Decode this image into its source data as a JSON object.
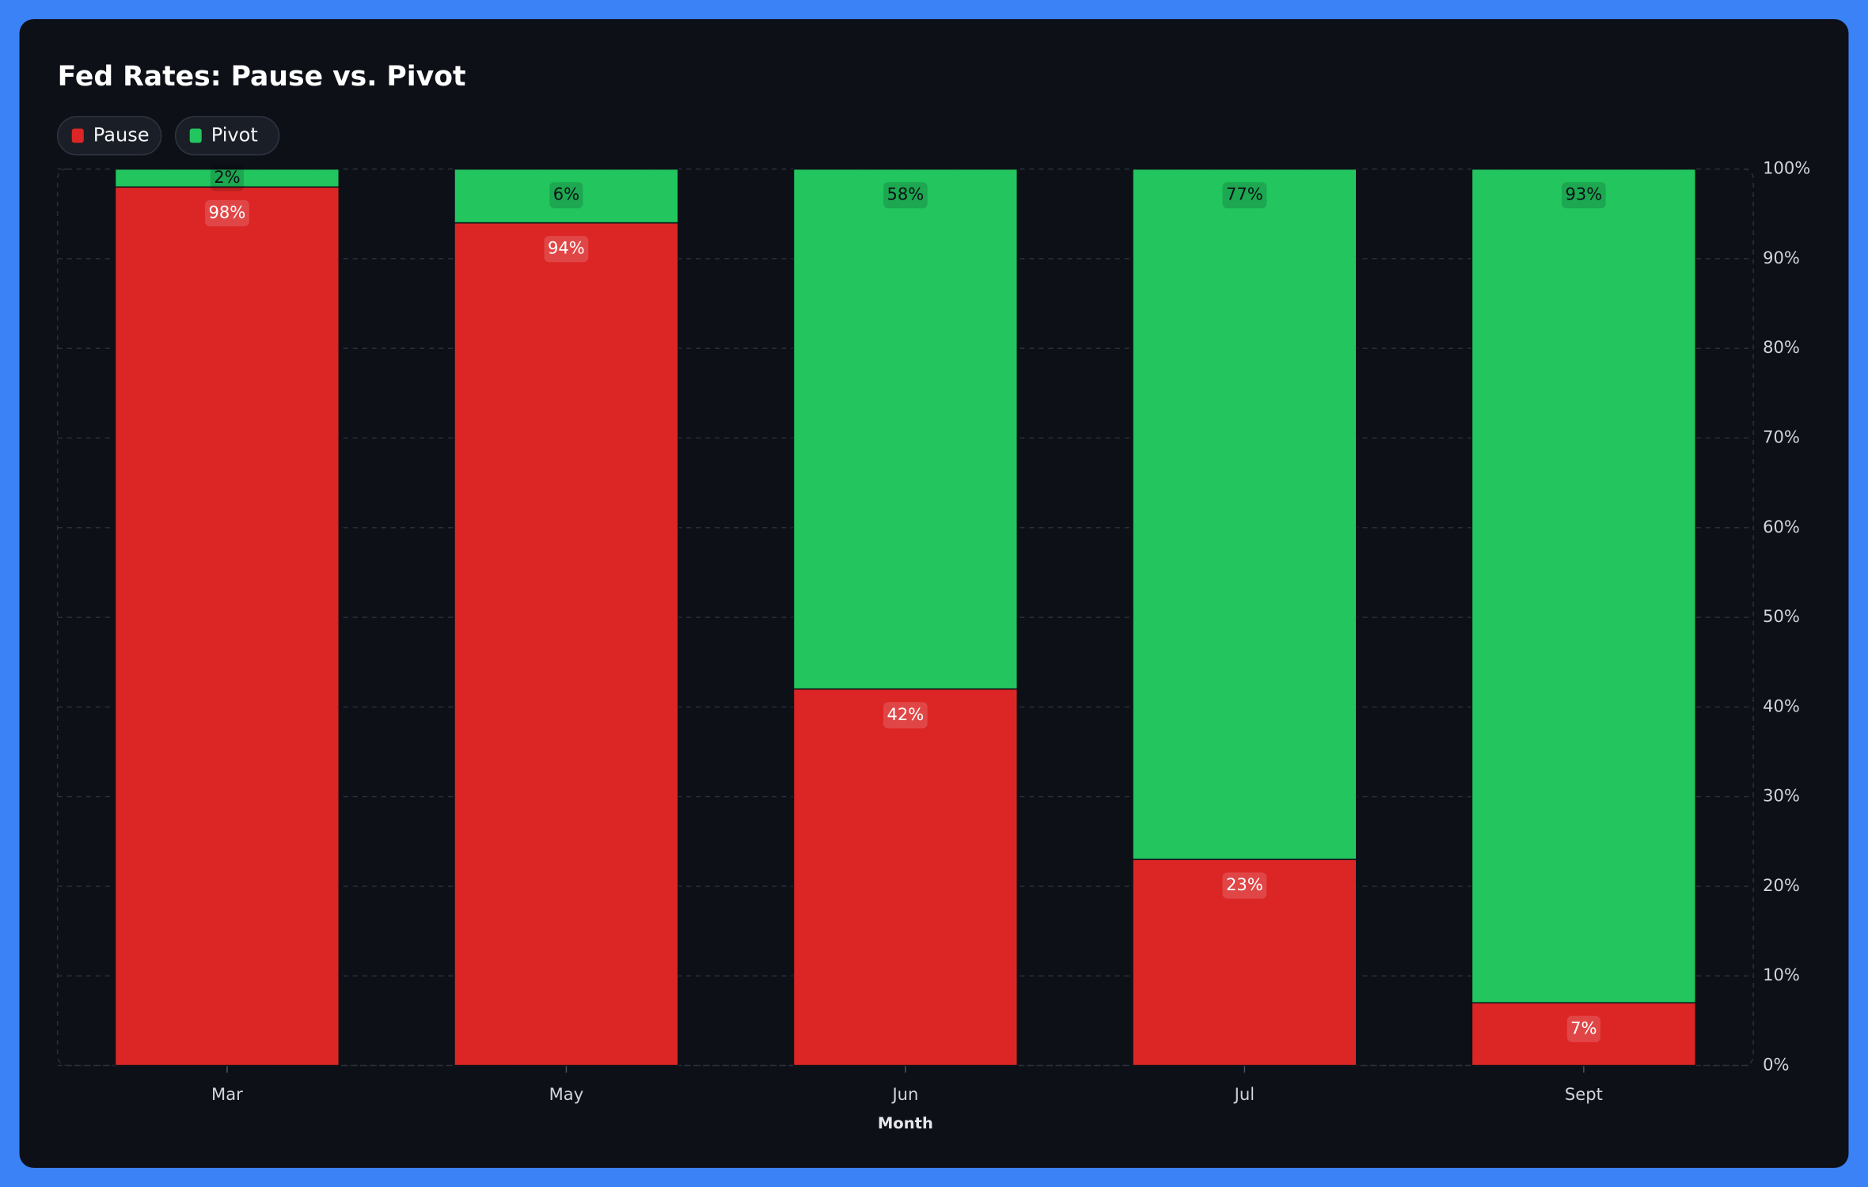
{
  "chart_data": {
    "type": "bar",
    "stacked": true,
    "title": "Fed Rates: Pause vs. Pivot",
    "x_label": "Month",
    "categories": [
      "Mar",
      "May",
      "Jun",
      "Jul",
      "Sept"
    ],
    "series": [
      {
        "name": "Pause",
        "color": "#dc2626",
        "values": [
          98,
          94,
          42,
          23,
          7
        ],
        "value_labels": [
          "98%",
          "94%",
          "42%",
          "23%",
          "7%"
        ]
      },
      {
        "name": "Pivot",
        "color": "#22c55e",
        "values": [
          2,
          6,
          58,
          77,
          93
        ],
        "value_labels": [
          "2%",
          "6%",
          "58%",
          "77%",
          "93%"
        ]
      }
    ],
    "ylim": [
      0,
      100
    ],
    "yticks": [
      {
        "value": 0,
        "label": "0%"
      },
      {
        "value": 10,
        "label": "10%"
      },
      {
        "value": 20,
        "label": "20%"
      },
      {
        "value": 30,
        "label": "30%"
      },
      {
        "value": 40,
        "label": "40%"
      },
      {
        "value": 50,
        "label": "50%"
      },
      {
        "value": 60,
        "label": "60%"
      },
      {
        "value": 70,
        "label": "70%"
      },
      {
        "value": 80,
        "label": "80%"
      },
      {
        "value": 90,
        "label": "90%"
      },
      {
        "value": 100,
        "label": "100%"
      }
    ],
    "y_axis_side": "right",
    "grid": true,
    "legend": "top-left"
  }
}
